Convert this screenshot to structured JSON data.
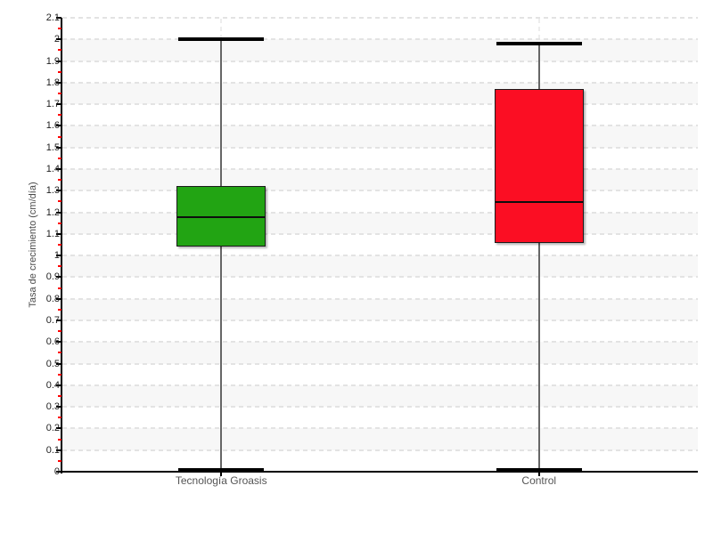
{
  "chart": {
    "y_axis_title": "Tasa de crecimiento (cm/día)"
  },
  "chart_data": {
    "type": "boxplot",
    "title": "",
    "xlabel": "",
    "ylabel": "Tasa de crecimiento (cm/día)",
    "ylim": [
      0,
      2.1
    ],
    "y_major_step": 0.1,
    "y_minor_step": 0.05,
    "y_tick_labels": [
      "0",
      "0.1",
      "0.2",
      "0.3",
      "0.4",
      "0.5",
      "0.6",
      "0.7",
      "0.8",
      "0.9",
      "1",
      "1.1",
      "1.2",
      "1.3",
      "1.4",
      "1.5",
      "1.6",
      "1.7",
      "1.8",
      "1.9",
      "2",
      "2.1"
    ],
    "categories": [
      "Tecnología Groasis",
      "Control"
    ],
    "series": [
      {
        "name": "Tecnología Groasis",
        "low": 0,
        "q1": 1.04,
        "median": 1.18,
        "q3": 1.32,
        "high": 2.0,
        "color": "#22a413"
      },
      {
        "name": "Control",
        "low": 0,
        "q1": 1.06,
        "median": 1.25,
        "q3": 1.77,
        "high": 1.98,
        "color": "#fb0e23"
      }
    ],
    "legend": null,
    "grid": {
      "horizontal_dashed_lines": true,
      "alternating_bands": true,
      "band_color": "#f7f7f7",
      "dash_color": "#e3e3e3",
      "vertical_category_dash_color": "#ededed"
    },
    "colors": {
      "axis": "#000000",
      "major_tick": "#000000",
      "minor_tick": "#ff0000",
      "whisker": "#666666",
      "tick_label": "#1f1f1f",
      "category_label": "#555555"
    }
  }
}
